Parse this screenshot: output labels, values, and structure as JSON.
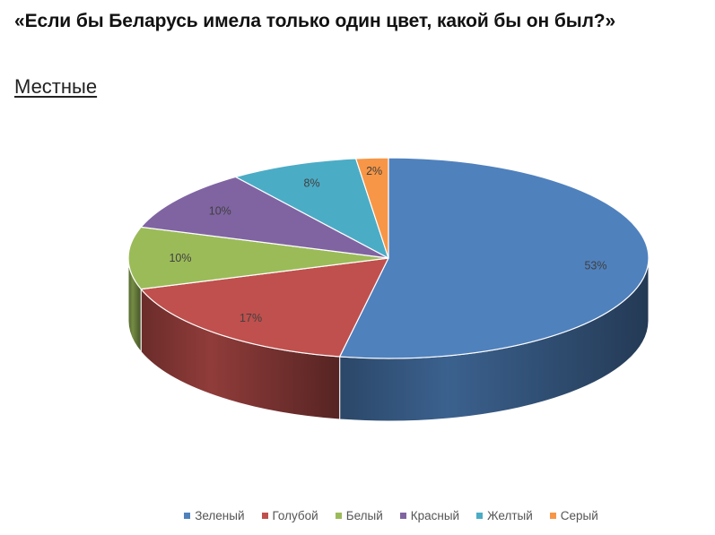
{
  "header": {
    "title": "«Если бы Беларусь имела только один цвет, какой бы он был?»",
    "subtitle": "Местные"
  },
  "chart_data": {
    "type": "pie",
    "style": "3d",
    "title": "",
    "categories": [
      "Зеленый",
      "Голубой",
      "Белый",
      "Красный",
      "Желтый",
      "Серый"
    ],
    "values": [
      53,
      17,
      10,
      10,
      8,
      2
    ],
    "labels": [
      "53%",
      "17%",
      "10%",
      "10%",
      "8%",
      "2%"
    ],
    "colors": [
      "#4f81bd",
      "#c0504d",
      "#9bbb59",
      "#8064a2",
      "#4bacc6",
      "#f79646"
    ],
    "legend_position": "bottom"
  }
}
